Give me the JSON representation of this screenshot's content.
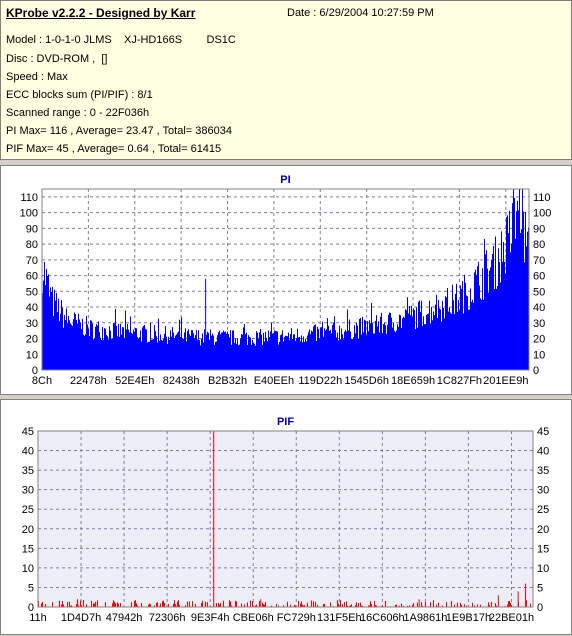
{
  "header": {
    "title": "KProbe v2.2.2 - Designed by Karr",
    "date": "Date : 6/29/2004 10:27:59 PM",
    "lines": [
      "Model : 1-0-1-0 JLMS    XJ-HD166S        DS1C",
      "Disc : DVD-ROM ,  []",
      "Speed : Max",
      "ECC blocks sum (PI/PIF) : 8/1",
      "Scanned range : 0 - 22F036h",
      "PI Max= 116 , Average= 23.47 , Total= 386034",
      "PIF Max= 45 , Average= 0.64 , Total= 61415"
    ]
  },
  "colors": {
    "pi": "#0000ff",
    "pif": "#ff0000",
    "grid": "#7f7f9f",
    "pif_bg": "#eeeef8"
  },
  "chart_data": [
    {
      "type": "area",
      "title": "PI",
      "ylim": [
        0,
        115
      ],
      "yticks": [
        0,
        10,
        20,
        30,
        40,
        50,
        60,
        70,
        80,
        90,
        100,
        110
      ],
      "xticks": [
        "8Ch",
        "22478h",
        "52E4Eh",
        "82438h",
        "B2B32h",
        "E40EEh",
        "119D22h",
        "1545D6h",
        "18E659h",
        "1C827Fh",
        "201EE9h"
      ],
      "grid": true,
      "x": [
        0.0,
        0.02,
        0.05,
        0.1,
        0.2,
        0.3,
        0.4,
        0.5,
        0.6,
        0.7,
        0.75,
        0.8,
        0.85,
        0.88,
        0.9,
        0.93,
        0.95,
        0.97,
        0.98,
        0.99,
        1.0
      ],
      "values": [
        68,
        45,
        33,
        27,
        24,
        22,
        21,
        22,
        25,
        30,
        34,
        40,
        46,
        54,
        60,
        70,
        80,
        95,
        116,
        90,
        72
      ],
      "peaks": [
        {
          "x": 0.336,
          "value": 58
        }
      ]
    },
    {
      "type": "bar",
      "title": "PIF",
      "ylim": [
        0,
        45
      ],
      "yticks": [
        0,
        5,
        10,
        15,
        20,
        25,
        30,
        35,
        40,
        45
      ],
      "xticks": [
        "11h",
        "1D4D7h",
        "47942h",
        "72306h",
        "9E3F4h",
        "CBE06h",
        "FC729h",
        "131F5Eh",
        "16C606h",
        "1A9861h",
        "1E9B17h",
        "22BE01h"
      ],
      "grid": true,
      "base": 1,
      "peaks": [
        {
          "x": 0.355,
          "value": 45
        },
        {
          "x": 0.985,
          "value": 6
        },
        {
          "x": 0.97,
          "value": 4
        },
        {
          "x": 0.08,
          "value": 2
        },
        {
          "x": 0.45,
          "value": 2
        },
        {
          "x": 0.77,
          "value": 2
        },
        {
          "x": 0.93,
          "value": 3
        }
      ]
    }
  ]
}
